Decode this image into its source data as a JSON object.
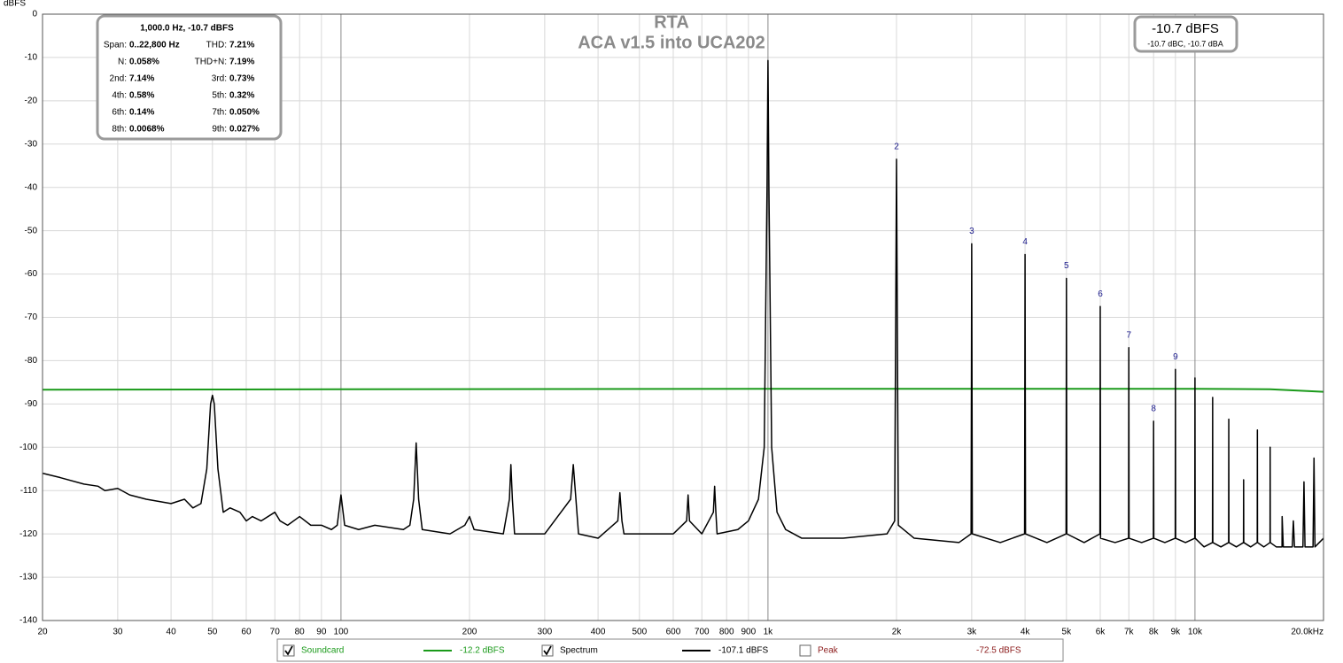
{
  "chart_data": {
    "type": "line",
    "title": "RTA",
    "subtitle": "ACA v1.5 into UCA202",
    "y_label": "dBFS",
    "xscale": "log",
    "grid": true,
    "xlim": [
      20,
      20000
    ],
    "ylim": [
      -140,
      0
    ],
    "yticks": [
      0,
      -10,
      -20,
      -30,
      -40,
      -50,
      -60,
      -70,
      -80,
      -90,
      -100,
      -110,
      -120,
      -130,
      -140
    ],
    "xticks": [
      20,
      30,
      40,
      50,
      60,
      70,
      80,
      90,
      100,
      200,
      300,
      400,
      500,
      600,
      700,
      800,
      900,
      {
        "value": 1000,
        "label": "1k"
      },
      {
        "value": 2000,
        "label": "2k"
      },
      {
        "value": 3000,
        "label": "3k"
      },
      {
        "value": 4000,
        "label": "4k"
      },
      {
        "value": 5000,
        "label": "5k"
      },
      {
        "value": 6000,
        "label": "6k"
      },
      {
        "value": 7000,
        "label": "7k"
      },
      {
        "value": 8000,
        "label": "8k"
      },
      {
        "value": 9000,
        "label": "9k"
      },
      {
        "value": 10000,
        "label": "10k"
      },
      {
        "value": 20000,
        "label": "20.0kHz"
      }
    ],
    "series": [
      {
        "name": "Soundcard",
        "color": "#1a9a1a",
        "checked": true,
        "readout": "-12.2 dBFS",
        "x": [
          20,
          1000,
          10000,
          15000,
          20000
        ],
        "values": [
          -86.7,
          -86.5,
          -86.5,
          -86.6,
          -87.2
        ]
      },
      {
        "name": "Spectrum",
        "color": "#000000",
        "checked": true,
        "readout": "-107.1 dBFS",
        "x": [
          20,
          22,
          25,
          27,
          28,
          30,
          32,
          35,
          40,
          43,
          45,
          47,
          48.5,
          49.5,
          50,
          50.5,
          51.5,
          53,
          55,
          58,
          60,
          62,
          65,
          70,
          72,
          75,
          80,
          85,
          90,
          95,
          98,
          100,
          102,
          110,
          120,
          140,
          145,
          148,
          150,
          152,
          155,
          180,
          195,
          200,
          205,
          240,
          248,
          250,
          252,
          255,
          300,
          345,
          350,
          355,
          360,
          400,
          445,
          450,
          455,
          460,
          600,
          645,
          650,
          655,
          700,
          745,
          750,
          755,
          760,
          850,
          900,
          950,
          980,
          995,
          1000,
          1005,
          1020,
          1050,
          1100,
          1200,
          1500,
          1900,
          1980,
          2000,
          2020,
          2200,
          2800,
          2990,
          3000,
          3010,
          3500,
          3990,
          4000,
          4010,
          4500,
          4990,
          5000,
          5010,
          5500,
          5990,
          6000,
          6010,
          6500,
          6990,
          7000,
          7010,
          7500,
          7990,
          8000,
          8010,
          8500,
          8990,
          9000,
          9010,
          9500,
          9990,
          10000,
          10010,
          10500,
          10990,
          11000,
          11010,
          11500,
          11990,
          12000,
          12010,
          12500,
          12990,
          13000,
          13010,
          13500,
          13990,
          14000,
          14010,
          14500,
          14990,
          15000,
          15010,
          15500,
          15990,
          16000,
          16100,
          16900,
          17000,
          17100,
          17900,
          18000,
          18100,
          18900,
          19000,
          19100,
          20000
        ],
        "values": [
          -106,
          -107,
          -108.5,
          -109,
          -110,
          -109.5,
          -111,
          -112,
          -113,
          -112,
          -114,
          -113,
          -105,
          -90,
          -88,
          -90,
          -105,
          -115,
          -114,
          -115,
          -117,
          -116,
          -117,
          -115,
          -117,
          -118,
          -116,
          -118,
          -118,
          -119,
          -118,
          -111,
          -118,
          -119,
          -118,
          -119,
          -118,
          -112,
          -99,
          -112,
          -119,
          -120,
          -118,
          -116,
          -119,
          -120,
          -112,
          -104,
          -112,
          -120,
          -120,
          -112,
          -104,
          -112,
          -120,
          -121,
          -117,
          -110.5,
          -117,
          -120,
          -120,
          -117,
          -111,
          -117,
          -120,
          -115,
          -109,
          -115,
          -120,
          -119,
          -117,
          -112,
          -100,
          -40,
          -10.7,
          -40,
          -100,
          -115,
          -119,
          -121,
          -121,
          -120,
          -117,
          -33.5,
          -118,
          -121,
          -122,
          -120,
          -53,
          -120,
          -122,
          -120,
          -55.5,
          -120,
          -122,
          -120,
          -61,
          -120,
          -122,
          -120,
          -67.5,
          -121,
          -122,
          -121,
          -77,
          -121,
          -122,
          -121,
          -94,
          -121,
          -122,
          -121,
          -82,
          -121,
          -122,
          -121,
          -84,
          -121,
          -123,
          -122,
          -88.5,
          -122,
          -123,
          -122,
          -93.5,
          -122,
          -123,
          -122,
          -107.5,
          -122,
          -123,
          -122,
          -96,
          -122,
          -123,
          -122,
          -100,
          -122,
          -123,
          -123,
          -116,
          -123,
          -123,
          -117,
          -123,
          -123,
          -108,
          -123,
          -123,
          -102.5,
          -123,
          -121
        ]
      },
      {
        "name": "Peak",
        "color": "#8b1a1a",
        "checked": false,
        "readout": "-72.5 dBFS"
      }
    ],
    "annotation_color": "#1a1a8c",
    "annotations": [
      {
        "text": "2",
        "x": 2000
      },
      {
        "text": "3",
        "x": 3000
      },
      {
        "text": "4",
        "x": 4000
      },
      {
        "text": "5",
        "x": 5000
      },
      {
        "text": "6",
        "x": 6000
      },
      {
        "text": "7",
        "x": 7000
      },
      {
        "text": "8",
        "x": 8000
      },
      {
        "text": "9",
        "x": 9000
      }
    ],
    "info": {
      "header": "1,000.0 Hz, -10.7 dBFS",
      "rows": [
        [
          "Span:",
          "0..22,800 Hz",
          "THD:",
          "7.21%"
        ],
        [
          "N:",
          "0.058%",
          "THD+N:",
          "7.19%"
        ],
        [
          "2nd:",
          "7.14%",
          "3rd:",
          "0.73%"
        ],
        [
          "4th:",
          "0.58%",
          "5th:",
          "0.32%"
        ],
        [
          "6th:",
          "0.14%",
          "7th:",
          "0.050%"
        ],
        [
          "8th:",
          "0.0068%",
          "9th:",
          "0.027%"
        ]
      ]
    },
    "readout": {
      "main": "-10.7 dBFS",
      "sub": "-10.7 dBC, -10.7 dBA"
    }
  }
}
